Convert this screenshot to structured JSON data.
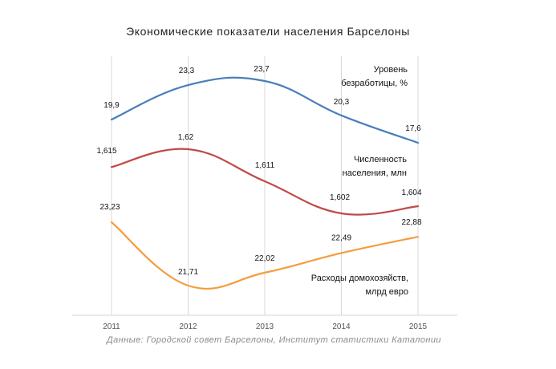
{
  "chart_data": {
    "type": "line",
    "title": "Экономические  показатели населения  Барселоны",
    "categories": [
      "2011",
      "2012",
      "2013",
      "2014",
      "2015"
    ],
    "smooth": true,
    "grid": "vertical",
    "series": [
      {
        "name": "Уровень безработицы, %",
        "name_lines": [
          "Уровень",
          "безработицы, %"
        ],
        "values": [
          19.9,
          23.3,
          23.7,
          20.3,
          17.6
        ],
        "labels": [
          "19,9",
          "23,3",
          "23,7",
          "20,3",
          "17,6"
        ],
        "range": [
          17.6,
          23.7
        ],
        "color": "#4a7ebb"
      },
      {
        "name": "Численность населения, млн",
        "name_lines": [
          "Численность",
          "населения, млн"
        ],
        "values": [
          1.615,
          1.62,
          1.611,
          1.602,
          1.604
        ],
        "labels": [
          "1,615",
          "1,62",
          "1,611",
          "1,602",
          "1,604"
        ],
        "range": [
          1.602,
          1.62
        ],
        "color": "#be4b48"
      },
      {
        "name": "Расходы домохозяйств, млрд евро",
        "name_lines": [
          "Расходы домохозяйств,",
          "млрд евро"
        ],
        "values": [
          23.23,
          21.71,
          22.02,
          22.49,
          22.88
        ],
        "labels": [
          "23,23",
          "21,71",
          "22,02",
          "22,49",
          "22,88"
        ],
        "range": [
          21.71,
          23.23
        ],
        "color": "#f59d3d"
      }
    ],
    "source": "Данные: Городской совет Барселоны, Институт  статистики  Каталонии"
  }
}
